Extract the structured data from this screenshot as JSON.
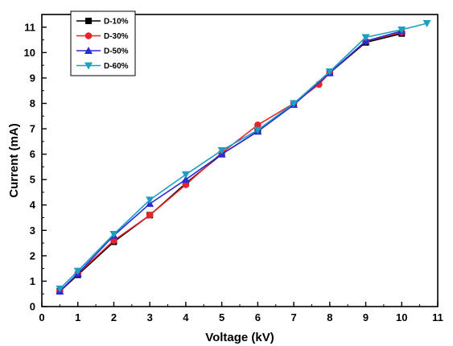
{
  "chart_data": {
    "type": "line",
    "xlabel": "Voltage (kV)",
    "ylabel": "Current (mA)",
    "xlim": [
      0,
      11
    ],
    "ylim": [
      0,
      11.5
    ],
    "x_ticks": [
      "0",
      "1",
      "2",
      "3",
      "4",
      "5",
      "6",
      "7",
      "8",
      "9",
      "10",
      "11"
    ],
    "y_ticks": [
      "0",
      "1",
      "2",
      "3",
      "4",
      "5",
      "6",
      "7",
      "8",
      "9",
      "10",
      "11"
    ],
    "grid": false,
    "legend_position": "top-left",
    "series": [
      {
        "name": "D-10%",
        "color": "#000000",
        "marker": "square",
        "x": [
          0.5,
          1,
          2,
          3,
          4,
          5,
          6,
          7,
          8,
          9,
          10
        ],
        "y": [
          0.6,
          1.25,
          2.55,
          3.6,
          4.85,
          6.0,
          6.9,
          7.95,
          9.2,
          10.4,
          10.75
        ]
      },
      {
        "name": "D-30%",
        "color": "#e8232a",
        "marker": "circle",
        "x": [
          0.5,
          1,
          2,
          3,
          4,
          5,
          6,
          7,
          7.7,
          8,
          9,
          10
        ],
        "y": [
          0.6,
          1.3,
          2.6,
          3.6,
          4.8,
          6.05,
          7.15,
          8.0,
          8.75,
          9.2,
          10.45,
          10.8
        ]
      },
      {
        "name": "D-50%",
        "color": "#2b2bd6",
        "marker": "triangle-up",
        "x": [
          0.5,
          1,
          2,
          3,
          4,
          5,
          6,
          7,
          8,
          9,
          10
        ],
        "y": [
          0.6,
          1.3,
          2.8,
          4.05,
          5.0,
          6.0,
          6.9,
          7.95,
          9.2,
          10.45,
          10.85
        ]
      },
      {
        "name": "D-60%",
        "color": "#1e9fc0",
        "marker": "triangle-down",
        "x": [
          0.5,
          1,
          2,
          3,
          4,
          5,
          6,
          7,
          8,
          9,
          10,
          10.7
        ],
        "y": [
          0.7,
          1.4,
          2.85,
          4.2,
          5.2,
          6.15,
          6.95,
          8.0,
          9.25,
          10.6,
          10.9,
          11.15
        ]
      }
    ]
  }
}
